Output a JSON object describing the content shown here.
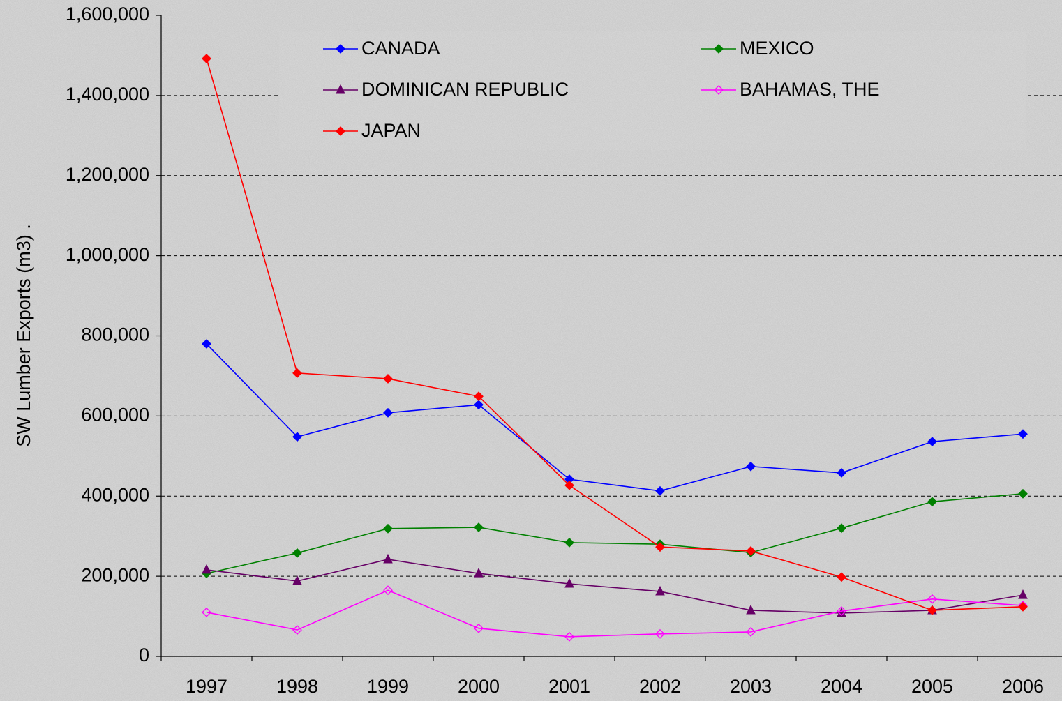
{
  "chart_data": {
    "type": "line",
    "y_label": "SW Lumber Exports (m3)  .",
    "categories": [
      "1997",
      "1998",
      "1999",
      "2000",
      "2001",
      "2002",
      "2003",
      "2004",
      "2005",
      "2006"
    ],
    "ylim": [
      0,
      1600000
    ],
    "yticks": [
      0,
      {
        "value": 200000,
        "label": "200,000"
      },
      {
        "value": 400000,
        "label": "400,000"
      },
      {
        "value": 600000,
        "label": "600,000"
      },
      {
        "value": 800000,
        "label": "800,000"
      },
      {
        "value": 1000000,
        "label": "1,000,000"
      },
      {
        "value": 1200000,
        "label": "1,200,000"
      },
      {
        "value": 1400000,
        "label": "1,400,000"
      },
      {
        "value": 1600000,
        "label": "1,600,000"
      }
    ],
    "grid": true,
    "series": [
      {
        "name": "CANADA",
        "color": "#0000ff",
        "marker": "diamond",
        "values": [
          780000,
          548000,
          608000,
          628000,
          442000,
          413000,
          474000,
          458000,
          536000,
          555000
        ]
      },
      {
        "name": "MEXICO",
        "color": "#008000",
        "marker": "diamond",
        "values": [
          207000,
          258000,
          319000,
          322000,
          284000,
          280000,
          259000,
          320000,
          386000,
          406000
        ]
      },
      {
        "name": "DOMINICAN REPUBLIC",
        "color": "#660066",
        "marker": "triangle",
        "values": [
          216000,
          188000,
          242000,
          207000,
          181000,
          162000,
          115000,
          108000,
          115000,
          153000
        ]
      },
      {
        "name": "BAHAMAS, THE",
        "color": "#ff00ff",
        "marker": "open-diamond",
        "values": [
          110000,
          66000,
          165000,
          70000,
          49000,
          56000,
          61000,
          113000,
          143000,
          127000
        ]
      },
      {
        "name": "JAPAN",
        "color": "#ff0000",
        "marker": "diamond",
        "values": [
          1492000,
          707000,
          693000,
          649000,
          427000,
          273000,
          263000,
          198000,
          115000,
          124000
        ]
      }
    ]
  }
}
